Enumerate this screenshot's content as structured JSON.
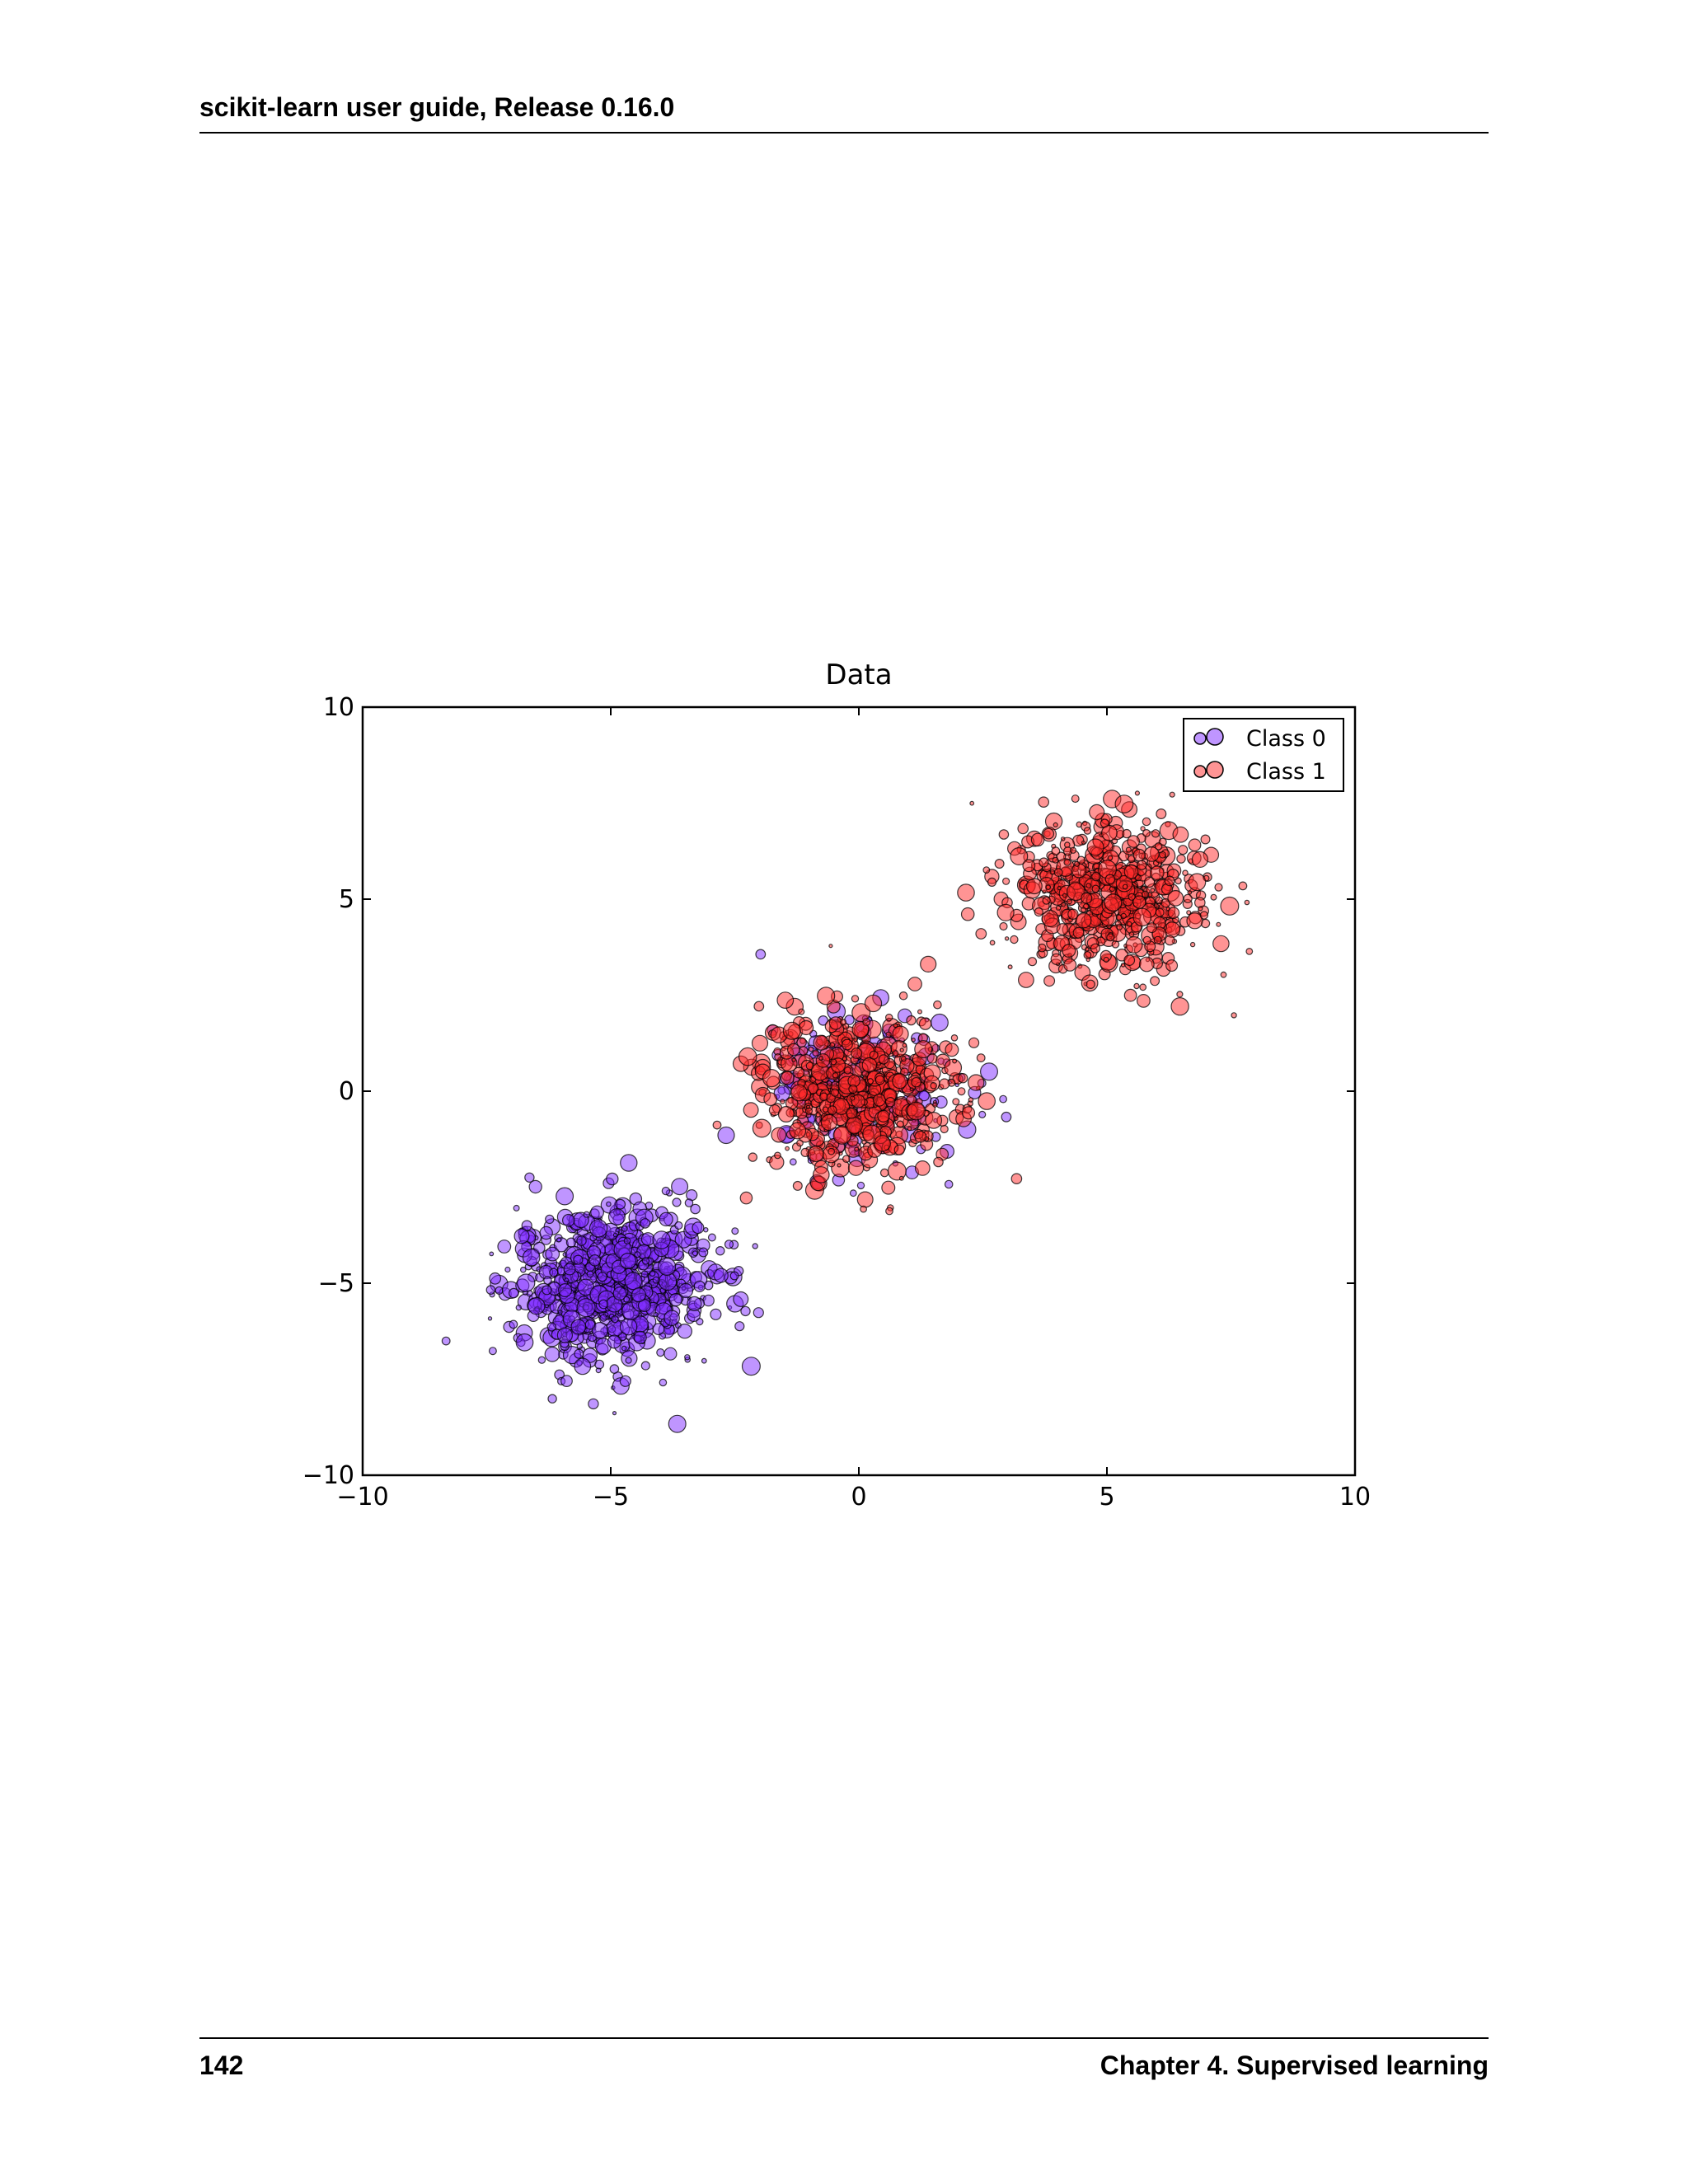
{
  "header": {
    "title": "scikit-learn user guide, Release 0.16.0"
  },
  "footer": {
    "page_number": "142",
    "chapter": "Chapter 4.  Supervised learning"
  },
  "chart_data": {
    "type": "scatter",
    "title": "Data",
    "xlabel": "",
    "ylabel": "",
    "xlim": [
      -10,
      10
    ],
    "ylim": [
      -10,
      10
    ],
    "xticks": [
      -10,
      -5,
      0,
      5,
      10
    ],
    "yticks": [
      -10,
      -5,
      0,
      5,
      10
    ],
    "x_tick_labels": [
      "−10",
      "−5",
      "0",
      "5",
      "10"
    ],
    "y_tick_labels": [
      "−10",
      "−5",
      "0",
      "5",
      "10"
    ],
    "grid": false,
    "legend": {
      "placement": "top-right",
      "entries": [
        "Class 0",
        "Class 1"
      ]
    },
    "series": [
      {
        "name": "Class 0",
        "color": "#7f2cff",
        "clusters": [
          {
            "center": [
              -5,
              -5
            ],
            "std": 1.0,
            "count": 800
          },
          {
            "center": [
              0,
              0
            ],
            "std": 1.0,
            "count": 200
          }
        ]
      },
      {
        "name": "Class 1",
        "color": "#ff2a2a",
        "clusters": [
          {
            "center": [
              0,
              0
            ],
            "std": 1.0,
            "count": 600
          },
          {
            "center": [
              5,
              5
            ],
            "std": 1.0,
            "count": 600
          }
        ]
      }
    ]
  }
}
